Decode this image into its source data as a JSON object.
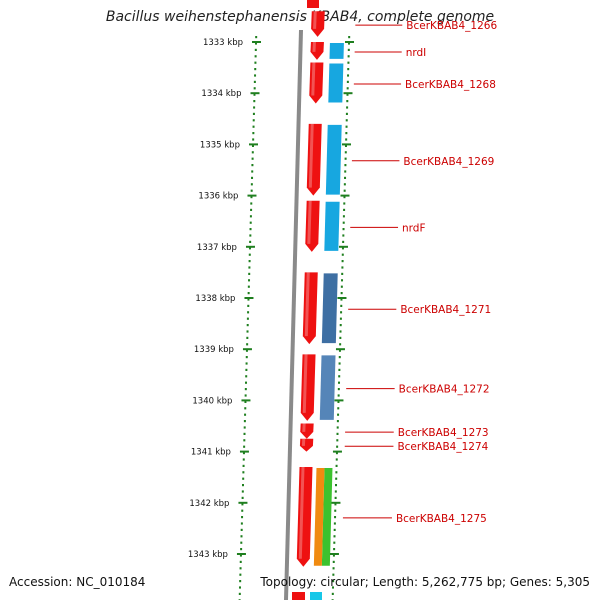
{
  "title": "Bacillus weihenstephanensis KBAB4, complete genome",
  "footer": {
    "accession": "Accession: NC_010184",
    "topology": "Topology: circular; Length: 5,262,775 bp; Genes: 5,305"
  },
  "scale": {
    "unit": "kbp",
    "ticks": [
      "1333 kbp",
      "1334 kbp",
      "1335 kbp",
      "1336 kbp",
      "1337 kbp",
      "1338 kbp",
      "1339 kbp",
      "1340 kbp",
      "1341 kbp",
      "1342 kbp",
      "1343 kbp"
    ]
  },
  "colors": {
    "backbone": "#8a8a8a",
    "gene": "#ee1111",
    "tick": "#1f7f1f",
    "label": "#cc0000"
  },
  "genes": [
    {
      "label": "BcerKBAB4_1266",
      "start_kbp": 1332.4,
      "end_kbp": 1332.9,
      "feature_color": ""
    },
    {
      "label": "nrdI",
      "start_kbp": 1333.0,
      "end_kbp": 1333.35,
      "feature_color": "#17a7e0"
    },
    {
      "label": "BcerKBAB4_1268",
      "start_kbp": 1333.4,
      "end_kbp": 1334.2,
      "feature_color": "#17a7e0"
    },
    {
      "label": "BcerKBAB4_1269",
      "start_kbp": 1334.6,
      "end_kbp": 1336.0,
      "feature_color": "#17a7e0"
    },
    {
      "label": "nrdF",
      "start_kbp": 1336.1,
      "end_kbp": 1337.1,
      "feature_color": "#17a7e0"
    },
    {
      "label": "BcerKBAB4_1271",
      "start_kbp": 1337.5,
      "end_kbp": 1338.9,
      "feature_color": "#3e6fa3"
    },
    {
      "label": "BcerKBAB4_1272",
      "start_kbp": 1339.1,
      "end_kbp": 1340.4,
      "feature_color": "#5585b8"
    },
    {
      "label": "BcerKBAB4_1273",
      "start_kbp": 1340.45,
      "end_kbp": 1340.75,
      "feature_color": ""
    },
    {
      "label": "BcerKBAB4_1274",
      "start_kbp": 1340.75,
      "end_kbp": 1341.0,
      "feature_color": ""
    },
    {
      "label": "BcerKBAB4_1275",
      "start_kbp": 1341.3,
      "end_kbp": 1343.25,
      "feature_color": [
        "#3cc22e",
        "#f08a10"
      ]
    }
  ]
}
